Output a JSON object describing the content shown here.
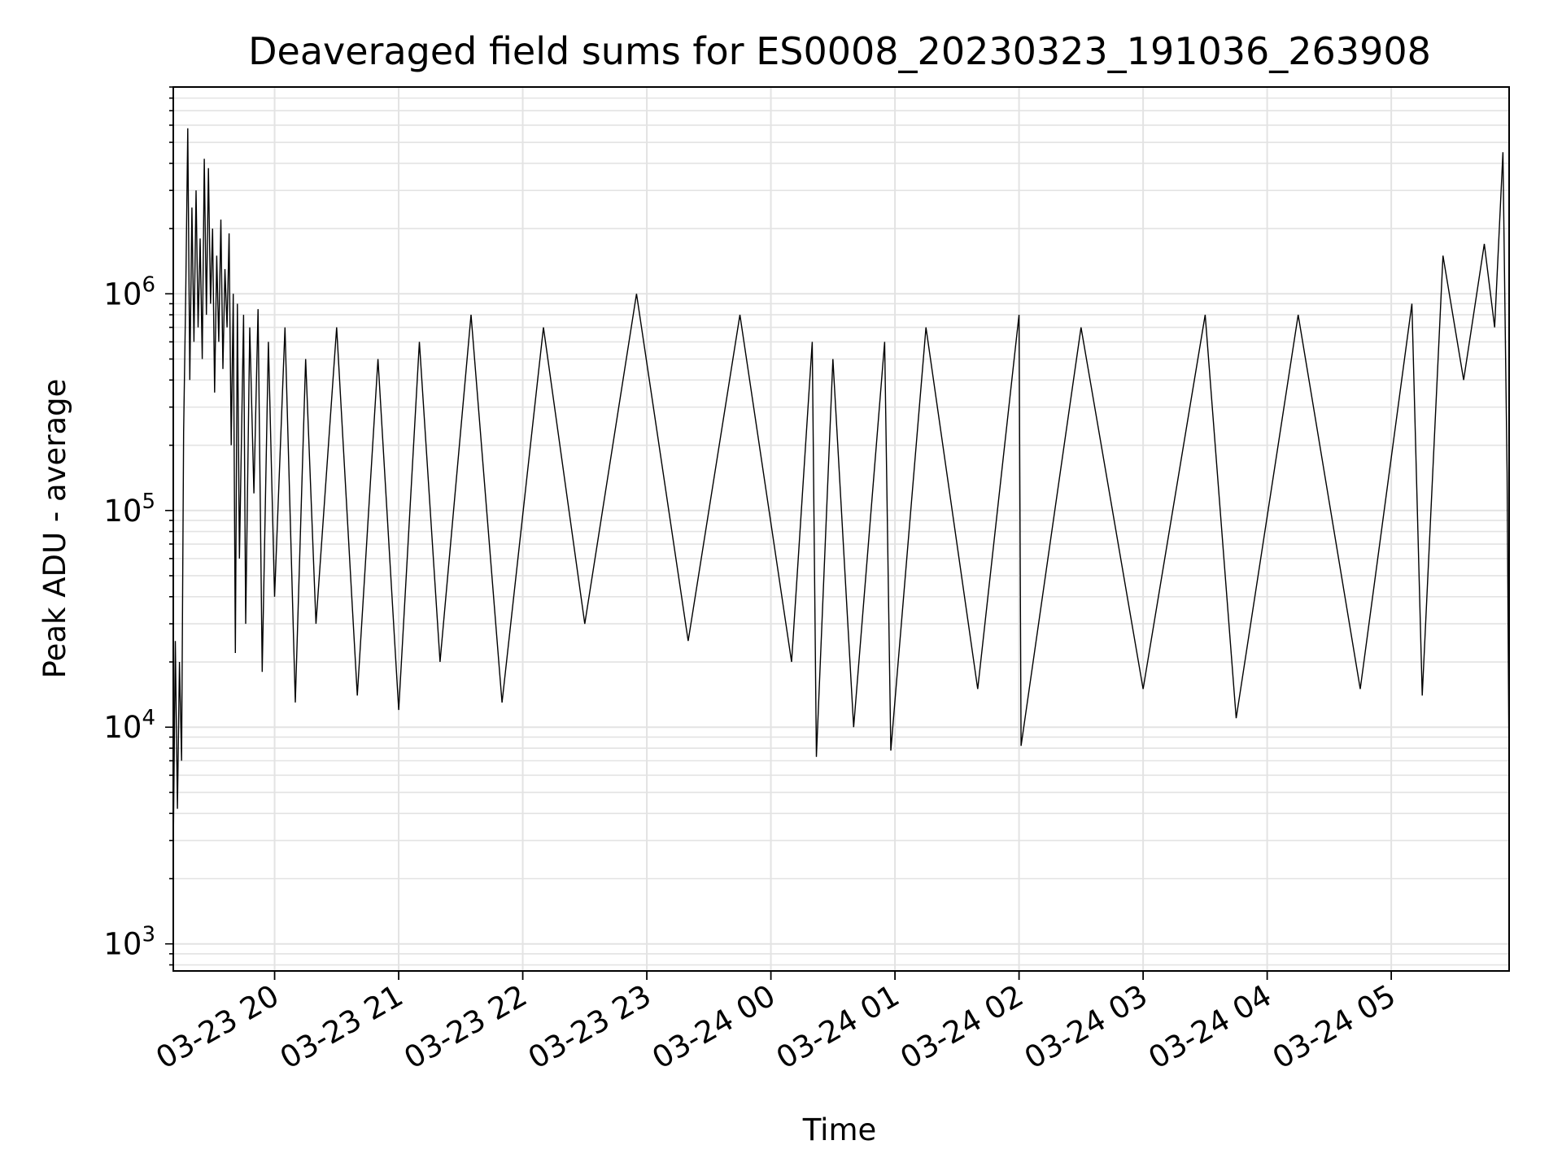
{
  "chart_data": {
    "type": "line",
    "title": "Deaveraged field sums for ES0008_20230323_191036_263908",
    "xlabel": "Time",
    "ylabel": "Peak ADU - average",
    "y_scale": "log",
    "ylim": [
      750,
      9000000
    ],
    "xlim": [
      "2023-03-23 19:11",
      "2023-03-24 05:57"
    ],
    "grid": true,
    "line_color": "#000000",
    "x_ticks": [
      {
        "value": "2023-03-23 20:00",
        "label": "03-23 20"
      },
      {
        "value": "2023-03-23 21:00",
        "label": "03-23 21"
      },
      {
        "value": "2023-03-23 22:00",
        "label": "03-23 22"
      },
      {
        "value": "2023-03-23 23:00",
        "label": "03-23 23"
      },
      {
        "value": "2023-03-24 00:00",
        "label": "03-24 00"
      },
      {
        "value": "2023-03-24 01:00",
        "label": "03-24 01"
      },
      {
        "value": "2023-03-24 02:00",
        "label": "03-24 02"
      },
      {
        "value": "2023-03-24 03:00",
        "label": "03-24 03"
      },
      {
        "value": "2023-03-24 04:00",
        "label": "03-24 04"
      },
      {
        "value": "2023-03-24 05:00",
        "label": "03-24 05"
      }
    ],
    "y_ticks": [
      {
        "value": 1000,
        "base": "10",
        "exp": "3"
      },
      {
        "value": 10000,
        "base": "10",
        "exp": "4"
      },
      {
        "value": 100000,
        "base": "10",
        "exp": "5"
      },
      {
        "value": 1000000,
        "base": "10",
        "exp": "6"
      }
    ],
    "series": [
      {
        "points": [
          [
            "2023-03-23 19:11",
            2700
          ],
          [
            "2023-03-23 19:12",
            25000
          ],
          [
            "2023-03-23 19:13",
            4200
          ],
          [
            "2023-03-23 19:14",
            20000
          ],
          [
            "2023-03-23 19:15",
            7000
          ],
          [
            "2023-03-23 19:16",
            230000
          ],
          [
            "2023-03-23 19:17",
            1000000
          ],
          [
            "2023-03-23 19:18",
            5800000
          ],
          [
            "2023-03-23 19:19",
            400000
          ],
          [
            "2023-03-23 19:20",
            2500000
          ],
          [
            "2023-03-23 19:21",
            600000
          ],
          [
            "2023-03-23 19:22",
            3000000
          ],
          [
            "2023-03-23 19:23",
            700000
          ],
          [
            "2023-03-23 19:24",
            1800000
          ],
          [
            "2023-03-23 19:25",
            500000
          ],
          [
            "2023-03-23 19:26",
            4200000
          ],
          [
            "2023-03-23 19:27",
            800000
          ],
          [
            "2023-03-23 19:28",
            3800000
          ],
          [
            "2023-03-23 19:29",
            900000
          ],
          [
            "2023-03-23 19:30",
            2000000
          ],
          [
            "2023-03-23 19:31",
            350000
          ],
          [
            "2023-03-23 19:32",
            1500000
          ],
          [
            "2023-03-23 19:33",
            600000
          ],
          [
            "2023-03-23 19:34",
            2200000
          ],
          [
            "2023-03-23 19:35",
            450000
          ],
          [
            "2023-03-23 19:36",
            1300000
          ],
          [
            "2023-03-23 19:37",
            700000
          ],
          [
            "2023-03-23 19:38",
            1900000
          ],
          [
            "2023-03-23 19:39",
            200000
          ],
          [
            "2023-03-23 19:40",
            1000000
          ],
          [
            "2023-03-23 19:41",
            22000
          ],
          [
            "2023-03-23 19:42",
            900000
          ],
          [
            "2023-03-23 19:43",
            60000
          ],
          [
            "2023-03-23 19:45",
            800000
          ],
          [
            "2023-03-23 19:46",
            30000
          ],
          [
            "2023-03-23 19:48",
            700000
          ],
          [
            "2023-03-23 19:50",
            120000
          ],
          [
            "2023-03-23 19:52",
            850000
          ],
          [
            "2023-03-23 19:54",
            18000
          ],
          [
            "2023-03-23 19:57",
            600000
          ],
          [
            "2023-03-23 20:00",
            40000
          ],
          [
            "2023-03-23 20:05",
            700000
          ],
          [
            "2023-03-23 20:10",
            13000
          ],
          [
            "2023-03-23 20:15",
            500000
          ],
          [
            "2023-03-23 20:20",
            30000
          ],
          [
            "2023-03-23 20:30",
            700000
          ],
          [
            "2023-03-23 20:40",
            14000
          ],
          [
            "2023-03-23 20:50",
            500000
          ],
          [
            "2023-03-23 21:00",
            12000
          ],
          [
            "2023-03-23 21:10",
            600000
          ],
          [
            "2023-03-23 21:20",
            20000
          ],
          [
            "2023-03-23 21:35",
            800000
          ],
          [
            "2023-03-23 21:50",
            13000
          ],
          [
            "2023-03-23 22:10",
            700000
          ],
          [
            "2023-03-23 22:30",
            30000
          ],
          [
            "2023-03-23 22:55",
            1000000
          ],
          [
            "2023-03-23 23:20",
            25000
          ],
          [
            "2023-03-23 23:45",
            800000
          ],
          [
            "2023-03-24 00:10",
            20000
          ],
          [
            "2023-03-24 00:20",
            600000
          ],
          [
            "2023-03-24 00:22",
            7300
          ],
          [
            "2023-03-24 00:30",
            500000
          ],
          [
            "2023-03-24 00:40",
            10000
          ],
          [
            "2023-03-24 00:55",
            600000
          ],
          [
            "2023-03-24 00:58",
            7800
          ],
          [
            "2023-03-24 01:15",
            700000
          ],
          [
            "2023-03-24 01:40",
            15000
          ],
          [
            "2023-03-24 02:00",
            800000
          ],
          [
            "2023-03-24 02:01",
            8200
          ],
          [
            "2023-03-24 02:30",
            700000
          ],
          [
            "2023-03-24 03:00",
            15000
          ],
          [
            "2023-03-24 03:30",
            800000
          ],
          [
            "2023-03-24 03:45",
            11000
          ],
          [
            "2023-03-24 04:15",
            800000
          ],
          [
            "2023-03-24 04:45",
            15000
          ],
          [
            "2023-03-24 05:10",
            900000
          ],
          [
            "2023-03-24 05:15",
            14000
          ],
          [
            "2023-03-24 05:25",
            1500000
          ],
          [
            "2023-03-24 05:35",
            400000
          ],
          [
            "2023-03-24 05:45",
            1700000
          ],
          [
            "2023-03-24 05:50",
            700000
          ],
          [
            "2023-03-24 05:54",
            4500000
          ],
          [
            "2023-03-24 05:56",
            150000
          ],
          [
            "2023-03-24 05:57",
            5800
          ]
        ]
      }
    ]
  }
}
